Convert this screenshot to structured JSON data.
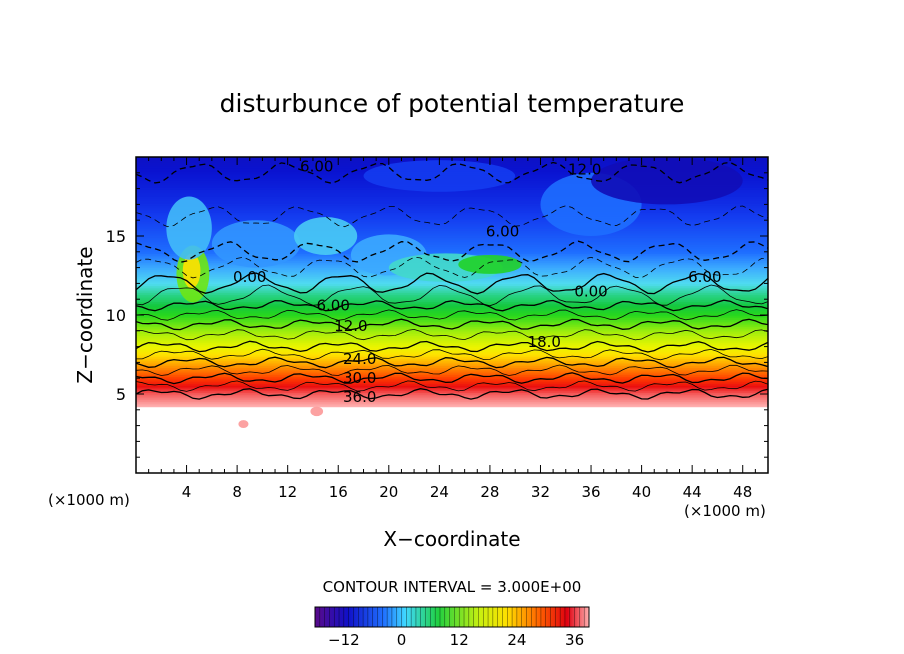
{
  "chart_data": {
    "type": "heatmap",
    "title": "disturbunce of potential temperature",
    "xlabel": "X−coordinate",
    "ylabel": "Z−coordinate",
    "x_unit": "(×1000 m)",
    "y_unit": "(×1000 m)",
    "xlim": [
      0,
      50
    ],
    "ylim": [
      0,
      20
    ],
    "x_ticks": [
      4,
      8,
      12,
      16,
      20,
      24,
      28,
      32,
      36,
      40,
      44,
      48
    ],
    "y_ticks": [
      5,
      10,
      15
    ],
    "contour_interval_text": "CONTOUR INTERVAL = 3.000E+00",
    "contour_interval": 3,
    "color_range": [
      -18,
      39
    ],
    "colorbar_ticks": [
      "−12",
      "0",
      "12",
      "24",
      "36"
    ],
    "colorbar_tick_values": [
      -12,
      0,
      12,
      24,
      36
    ],
    "levels_profile": [
      {
        "z": 4.2,
        "value": 39
      },
      {
        "z": 5.0,
        "value": 36
      },
      {
        "z": 6.0,
        "value": 30
      },
      {
        "z": 7.0,
        "value": 24
      },
      {
        "z": 8.0,
        "value": 18
      },
      {
        "z": 9.0,
        "value": 14
      },
      {
        "z": 10.0,
        "value": 9
      },
      {
        "z": 11.0,
        "value": 4
      },
      {
        "z": 12.0,
        "value": 0
      },
      {
        "z": 14.0,
        "value": -6
      },
      {
        "z": 17.0,
        "value": -10
      },
      {
        "z": 20.0,
        "value": -13
      }
    ],
    "contour_labels": [
      {
        "text": "6.00",
        "x": 14.3,
        "y": 19.4
      },
      {
        "text": "12.0",
        "x": 35.5,
        "y": 19.2
      },
      {
        "text": "6.00",
        "x": 29.0,
        "y": 15.3
      },
      {
        "text": "0.00",
        "x": 9.0,
        "y": 12.4
      },
      {
        "text": "6.00",
        "x": 45.0,
        "y": 12.4
      },
      {
        "text": "0.00",
        "x": 36.0,
        "y": 11.5
      },
      {
        "text": "6.00",
        "x": 15.6,
        "y": 10.6
      },
      {
        "text": "12.0",
        "x": 17.0,
        "y": 9.3
      },
      {
        "text": "18.0",
        "x": 32.3,
        "y": 8.3
      },
      {
        "text": "24.0",
        "x": 17.7,
        "y": 7.2
      },
      {
        "text": "30.0",
        "x": 17.7,
        "y": 6.0
      },
      {
        "text": "36.0",
        "x": 17.7,
        "y": 4.8
      }
    ]
  }
}
